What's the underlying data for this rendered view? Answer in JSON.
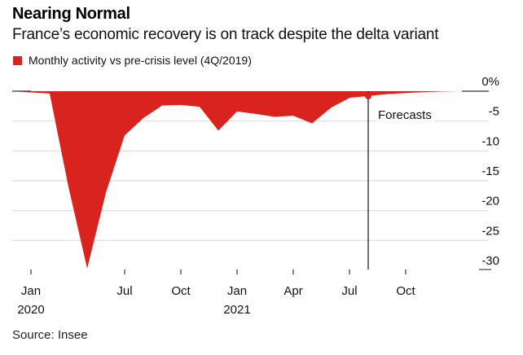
{
  "chart_data": {
    "type": "area",
    "title": "Nearing Normal",
    "subtitle": "France’s economic recovery is on track despite the delta variant",
    "legend": [
      {
        "name": "Monthly activity vs pre-crisis level (4Q/2019)",
        "color": "#d9231f"
      }
    ],
    "legend_placement": "top-left",
    "x": [
      "Dec 2019",
      "Jan 2020",
      "Feb 2020",
      "Mar 2020",
      "Apr 2020",
      "May 2020",
      "Jun 2020",
      "Jul 2020",
      "Aug 2020",
      "Sep 2020",
      "Oct 2020",
      "Nov 2020",
      "Dec 2020",
      "Jan 2021",
      "Feb 2021",
      "Mar 2021",
      "Apr 2021",
      "May 2021",
      "Jun 2021",
      "Jul 2021",
      "Aug 2021",
      "Sep 2021",
      "Oct 2021",
      "Nov 2021",
      "Dec 2021"
    ],
    "series": [
      {
        "name": "Monthly activity vs pre-crisis level (4Q/2019)",
        "values": [
          0,
          -0.2,
          -0.4,
          -16,
          -29.7,
          -17,
          -7.4,
          -4.5,
          -2.4,
          -2.3,
          -2.6,
          -6.6,
          -3.4,
          -3.8,
          -4.3,
          -4.1,
          -5.4,
          -2.8,
          -1.1,
          -0.8,
          -0.5,
          -0.3,
          -0.15,
          -0.05,
          0
        ]
      }
    ],
    "forecast_start": "Jul 2021",
    "annotation": "Forecasts",
    "x_ticks": [
      {
        "month": "Jan 2020",
        "label": "Jan",
        "year": "2020"
      },
      {
        "month": "Jul 2020",
        "label": "Jul",
        "year": ""
      },
      {
        "month": "Oct 2020",
        "label": "Oct",
        "year": ""
      },
      {
        "month": "Jan 2021",
        "label": "Jan",
        "year": "2021"
      },
      {
        "month": "Apr 2021",
        "label": "Apr",
        "year": ""
      },
      {
        "month": "Jul 2021",
        "label": "Jul",
        "year": ""
      },
      {
        "month": "Oct 2021",
        "label": "Oct",
        "year": ""
      }
    ],
    "y_ticks": [
      "0%",
      "-5",
      "-10",
      "-15",
      "-20",
      "-25",
      "-30"
    ],
    "y_tick_values": [
      0,
      -5,
      -10,
      -15,
      -20,
      -25,
      -30
    ],
    "ylim": [
      -30,
      0
    ],
    "y_axis_side": "right",
    "grid": true,
    "colors": {
      "area": "#d9231f",
      "grid": "#dcdcdc",
      "axis": "#222222"
    }
  },
  "source": "Source: Insee"
}
